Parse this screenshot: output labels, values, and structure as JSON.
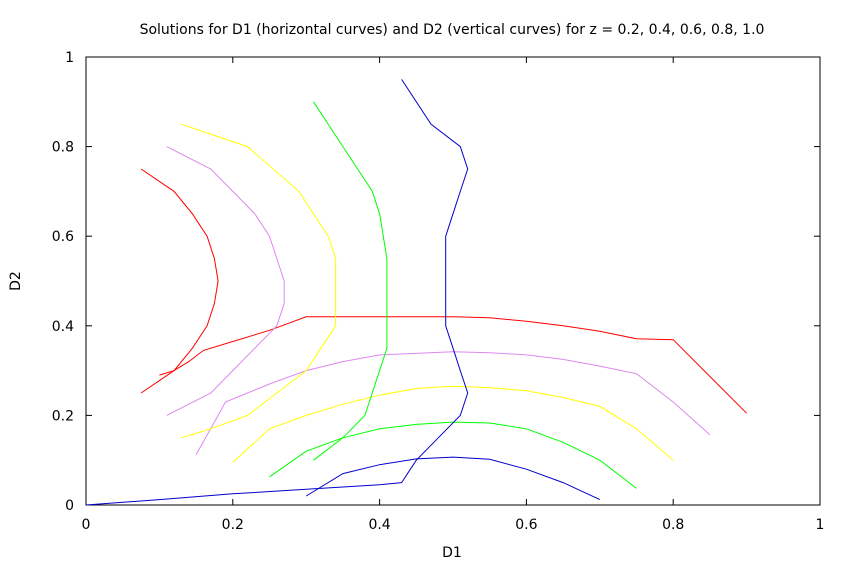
{
  "chart_data": {
    "type": "line",
    "title": "Solutions for D1 (horizontal curves) and D2 (vertical curves) for z = 0.2, 0.4, 0.6, 0.8, 1.0",
    "xlabel": "D1",
    "ylabel": "D2",
    "xlim": [
      0,
      1
    ],
    "ylim": [
      0,
      1
    ],
    "xticks": [
      "0",
      "0.2",
      "0.4",
      "0.6",
      "0.8",
      "1"
    ],
    "yticks": [
      "0",
      "0.2",
      "0.4",
      "0.6",
      "0.8",
      "1"
    ],
    "grid": false,
    "legend": "none",
    "series": [
      {
        "color": "#ff0000",
        "points": [
          [
            0.1,
            0.29
          ],
          [
            0.12,
            0.3
          ],
          [
            0.14,
            0.32
          ],
          [
            0.16,
            0.345
          ],
          [
            0.2,
            0.365
          ],
          [
            0.25,
            0.39
          ],
          [
            0.3,
            0.42
          ],
          [
            0.4,
            0.42
          ],
          [
            0.5,
            0.42
          ],
          [
            0.55,
            0.418
          ],
          [
            0.6,
            0.41
          ],
          [
            0.65,
            0.4
          ],
          [
            0.7,
            0.388
          ],
          [
            0.75,
            0.371
          ],
          [
            0.8,
            0.369
          ],
          [
            0.9,
            0.205
          ]
        ]
      },
      {
        "color": "#ff0000",
        "points": [
          [
            0.075,
            0.75
          ],
          [
            0.12,
            0.7
          ],
          [
            0.145,
            0.65
          ],
          [
            0.165,
            0.6
          ],
          [
            0.175,
            0.55
          ],
          [
            0.18,
            0.5
          ],
          [
            0.175,
            0.45
          ],
          [
            0.165,
            0.4
          ],
          [
            0.145,
            0.35
          ],
          [
            0.12,
            0.3
          ],
          [
            0.075,
            0.25
          ]
        ]
      },
      {
        "color": "#dd88ee",
        "points": [
          [
            0.11,
            0.2
          ],
          [
            0.17,
            0.25
          ],
          [
            0.2,
            0.3
          ],
          [
            0.23,
            0.35
          ],
          [
            0.26,
            0.4
          ],
          [
            0.27,
            0.45
          ],
          [
            0.27,
            0.5
          ],
          [
            0.26,
            0.55
          ],
          [
            0.25,
            0.6
          ],
          [
            0.23,
            0.65
          ],
          [
            0.2,
            0.7
          ],
          [
            0.17,
            0.75
          ],
          [
            0.11,
            0.8
          ]
        ]
      },
      {
        "color": "#dd88ee",
        "points": [
          [
            0.15,
            0.112
          ],
          [
            0.19,
            0.23
          ],
          [
            0.25,
            0.27
          ],
          [
            0.3,
            0.3
          ],
          [
            0.35,
            0.32
          ],
          [
            0.4,
            0.335
          ],
          [
            0.5,
            0.342
          ],
          [
            0.55,
            0.34
          ],
          [
            0.6,
            0.335
          ],
          [
            0.65,
            0.325
          ],
          [
            0.7,
            0.31
          ],
          [
            0.75,
            0.293
          ],
          [
            0.8,
            0.23
          ],
          [
            0.85,
            0.157
          ]
        ]
      },
      {
        "color": "#ffff00",
        "points": [
          [
            0.13,
            0.15
          ],
          [
            0.17,
            0.17
          ],
          [
            0.22,
            0.2
          ],
          [
            0.26,
            0.25
          ],
          [
            0.3,
            0.3
          ],
          [
            0.32,
            0.35
          ],
          [
            0.34,
            0.4
          ],
          [
            0.34,
            0.45
          ],
          [
            0.34,
            0.5
          ],
          [
            0.34,
            0.55
          ],
          [
            0.33,
            0.6
          ],
          [
            0.31,
            0.65
          ],
          [
            0.29,
            0.7
          ],
          [
            0.22,
            0.8
          ],
          [
            0.13,
            0.85
          ]
        ]
      },
      {
        "color": "#ffff00",
        "points": [
          [
            0.2,
            0.095
          ],
          [
            0.25,
            0.17
          ],
          [
            0.3,
            0.2
          ],
          [
            0.35,
            0.225
          ],
          [
            0.4,
            0.245
          ],
          [
            0.45,
            0.26
          ],
          [
            0.5,
            0.265
          ],
          [
            0.55,
            0.262
          ],
          [
            0.6,
            0.255
          ],
          [
            0.65,
            0.24
          ],
          [
            0.7,
            0.22
          ],
          [
            0.75,
            0.17
          ],
          [
            0.8,
            0.1
          ]
        ]
      },
      {
        "color": "#00ff00",
        "points": [
          [
            0.31,
            0.1
          ],
          [
            0.35,
            0.15
          ],
          [
            0.38,
            0.2
          ],
          [
            0.4,
            0.3
          ],
          [
            0.41,
            0.35
          ],
          [
            0.41,
            0.4
          ],
          [
            0.41,
            0.45
          ],
          [
            0.41,
            0.55
          ],
          [
            0.4,
            0.65
          ],
          [
            0.39,
            0.7
          ],
          [
            0.37,
            0.75
          ],
          [
            0.35,
            0.8
          ],
          [
            0.31,
            0.9
          ]
        ]
      },
      {
        "color": "#00ff00",
        "points": [
          [
            0.25,
            0.063
          ],
          [
            0.3,
            0.12
          ],
          [
            0.35,
            0.15
          ],
          [
            0.4,
            0.17
          ],
          [
            0.45,
            0.18
          ],
          [
            0.5,
            0.185
          ],
          [
            0.55,
            0.183
          ],
          [
            0.6,
            0.17
          ],
          [
            0.65,
            0.14
          ],
          [
            0.7,
            0.1
          ],
          [
            0.75,
            0.037
          ]
        ]
      },
      {
        "color": "#0000cc",
        "points": [
          [
            0.0,
            0.0
          ],
          [
            0.1,
            0.012
          ],
          [
            0.2,
            0.025
          ],
          [
            0.3,
            0.035
          ],
          [
            0.4,
            0.045
          ],
          [
            0.43,
            0.05
          ],
          [
            0.45,
            0.1
          ],
          [
            0.48,
            0.15
          ],
          [
            0.51,
            0.2
          ],
          [
            0.52,
            0.25
          ],
          [
            0.51,
            0.3
          ],
          [
            0.5,
            0.35
          ],
          [
            0.49,
            0.4
          ],
          [
            0.49,
            0.45
          ],
          [
            0.49,
            0.5
          ],
          [
            0.49,
            0.55
          ],
          [
            0.49,
            0.6
          ],
          [
            0.5,
            0.65
          ],
          [
            0.51,
            0.7
          ],
          [
            0.52,
            0.75
          ],
          [
            0.51,
            0.8
          ],
          [
            0.47,
            0.85
          ],
          [
            0.43,
            0.95
          ]
        ]
      },
      {
        "color": "#0000cc",
        "points": [
          [
            0.3,
            0.02
          ],
          [
            0.35,
            0.07
          ],
          [
            0.4,
            0.09
          ],
          [
            0.45,
            0.103
          ],
          [
            0.5,
            0.107
          ],
          [
            0.55,
            0.102
          ],
          [
            0.6,
            0.08
          ],
          [
            0.65,
            0.05
          ],
          [
            0.7,
            0.012
          ]
        ]
      }
    ]
  }
}
